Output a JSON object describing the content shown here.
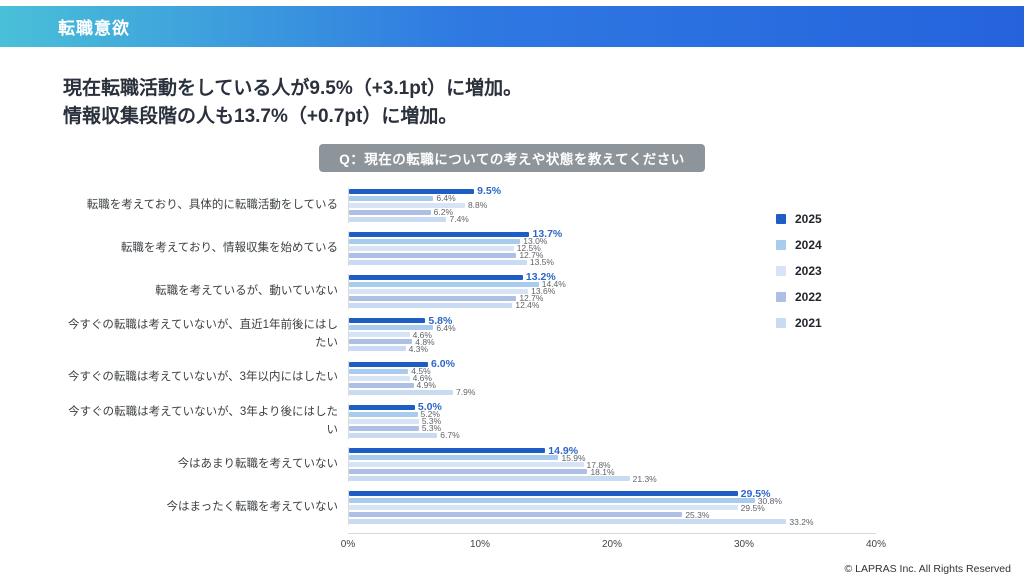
{
  "header": {
    "title": "転職意欲"
  },
  "headline": {
    "line1": "現在転職活動をしている人が9.5%（+3.1pt）に増加。",
    "line2": "情報収集段階の人も13.7%（+0.7pt）に増加。"
  },
  "question_badge": "Q：現在の転職についての考えや状態を教えてください",
  "footer": {
    "copyright": "© LAPRAS Inc. All Rights Reserved"
  },
  "colors": {
    "header_gradient_left": "#4ac0d8",
    "header_gradient_right": "#2563dd",
    "badge_bg": "#8e959a",
    "value_label_gray": "#5f6368",
    "value_label_2025": "#2e66c8"
  },
  "chart_data": {
    "type": "bar",
    "orientation": "horizontal",
    "title": "",
    "xlabel": "",
    "ylabel": "",
    "xlim": [
      0,
      40
    ],
    "x_ticks": [
      "0%",
      "10%",
      "20%",
      "30%",
      "40%"
    ],
    "grid": false,
    "legend_position": "right",
    "value_label_format": "{value}%",
    "categories": [
      "転職を考えており、具体的に転職活動をしている",
      "転職を考えており、情報収集を始めている",
      "転職を考えているが、動いていない",
      "今すぐの転職は考えていないが、直近1年前後にはしたい",
      "今すぐの転職は考えていないが、3年以内にはしたい",
      "今すぐの転職は考えていないが、3年より後にはしたい",
      "今はあまり転職を考えていない",
      "今はまったく転職を考えていない"
    ],
    "series": [
      {
        "name": "2025",
        "color": "#1e5ec4",
        "values": [
          9.5,
          13.7,
          13.2,
          5.8,
          6.0,
          5.0,
          14.9,
          29.5
        ]
      },
      {
        "name": "2024",
        "color": "#a9cbee",
        "values": [
          6.4,
          13.0,
          14.4,
          6.4,
          4.5,
          5.2,
          15.9,
          30.8
        ]
      },
      {
        "name": "2023",
        "color": "#d6e4f5",
        "values": [
          8.8,
          12.5,
          13.6,
          4.6,
          4.6,
          5.3,
          17.8,
          29.5
        ]
      },
      {
        "name": "2022",
        "color": "#adbfe5",
        "values": [
          6.2,
          12.7,
          12.7,
          4.8,
          4.9,
          5.3,
          18.1,
          25.3
        ]
      },
      {
        "name": "2021",
        "color": "#c8dbf3",
        "values": [
          7.4,
          13.5,
          12.4,
          4.3,
          7.9,
          6.7,
          21.3,
          33.2
        ]
      }
    ]
  }
}
